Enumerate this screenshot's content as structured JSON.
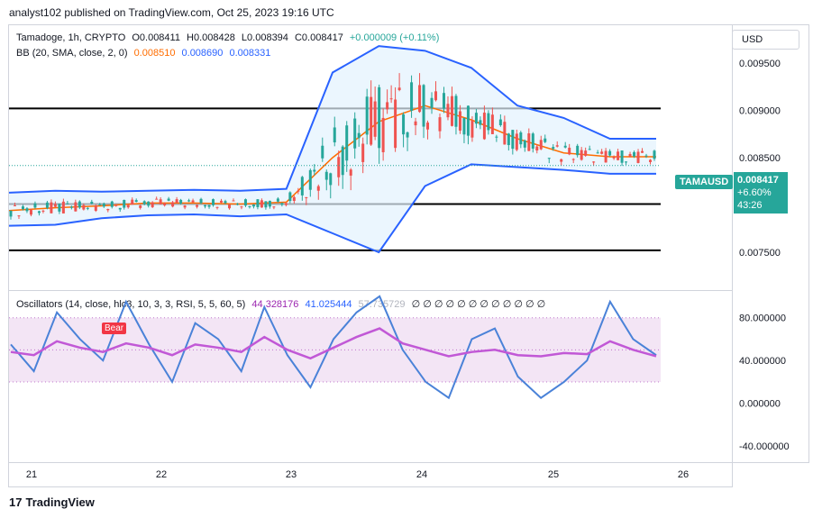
{
  "header": {
    "published": "analyst102 published on TradingView.com, Oct 25, 2023 19:16 UTC"
  },
  "legend": {
    "symbol": "Tamadoge, 1h, CRYPTO",
    "open": "O0.008411",
    "high": "H0.008428",
    "low": "L0.008394",
    "close": "C0.008417",
    "change": "+0.000009 (+0.11%)",
    "bb_label": "BB (20, SMA, close, 2, 0)",
    "bb_basis": "0.008510",
    "bb_upper": "0.008690",
    "bb_lower": "0.008331",
    "osc_label": "Oscillators (14, close, hlc3, 10, 3, 3, RSI, 5, 5, 60, 5)",
    "osc_v1": "44.328176",
    "osc_v2": "41.025444",
    "osc_v3": "57.735729",
    "osc_zeros": "∅ ∅ ∅ ∅ ∅ ∅ ∅ ∅ ∅ ∅ ∅ ∅"
  },
  "currency": "USD",
  "price_tag": {
    "symbol": "TAMAUSD",
    "price": "0.008417",
    "change": "+6.60%",
    "countdown": "43:26"
  },
  "bear_label": "Bear",
  "branding": "TradingView",
  "colors": {
    "up": "#26a69a",
    "down": "#ef5350",
    "bb_band": "#2962ff",
    "bb_basis": "#ff6d00",
    "bb_fill": "#e3f2fd",
    "osc_main": "#4a82d8",
    "osc_signal": "#c158d6",
    "osc_band": "#f3e5f5"
  },
  "chart_data": [
    {
      "type": "candlestick",
      "title": "Tamadoge, 1h, CRYPTO",
      "x_ticks": [
        "21",
        "22",
        "23",
        "24",
        "25",
        "26"
      ],
      "y_ticks": [
        "0.009500",
        "0.009000",
        "0.008500",
        "0.008000",
        "0.007500"
      ],
      "ylim": [
        0.0071,
        0.0099
      ],
      "horizontal_levels": [
        0.00902,
        0.00801,
        0.00752
      ],
      "series": [
        {
          "name": "BB upper",
          "values_approx": [
            0.00813,
            0.00815,
            0.00814,
            0.00815,
            0.00816,
            0.00815,
            0.00817,
            0.0094,
            0.00968,
            0.00963,
            0.00945,
            0.00905,
            0.00892,
            0.0087,
            0.0087
          ]
        },
        {
          "name": "BB basis",
          "values_approx": [
            0.00794,
            0.00797,
            0.00799,
            0.00802,
            0.00802,
            0.00801,
            0.00803,
            0.0085,
            0.00888,
            0.00905,
            0.0089,
            0.0087,
            0.00855,
            0.00851,
            0.00851
          ]
        },
        {
          "name": "BB lower",
          "values_approx": [
            0.00778,
            0.00779,
            0.00786,
            0.00789,
            0.0079,
            0.00788,
            0.0079,
            0.0077,
            0.0075,
            0.0082,
            0.00843,
            0.0084,
            0.00837,
            0.00833,
            0.00833
          ]
        }
      ],
      "last_close": 0.008417
    },
    {
      "type": "line",
      "title": "Oscillators (14, close, hlc3, 10, 3, 3, RSI, 5, 5, 60, 5)",
      "y_ticks": [
        "80.000000",
        "40.000000",
        "0.000000",
        "-40.000000"
      ],
      "ylim": [
        -55,
        105
      ],
      "band": [
        20,
        80
      ],
      "series": [
        {
          "name": "",
          "values": [
            55,
            30,
            85,
            60,
            40,
            95,
            55,
            20,
            75,
            60,
            30,
            90,
            45,
            15,
            60,
            85,
            100,
            50,
            20,
            5,
            60,
            70,
            25,
            5,
            20,
            40,
            95,
            60,
            45
          ]
        },
        {
          "name": "",
          "values": [
            48,
            45,
            58,
            52,
            48,
            56,
            52,
            45,
            55,
            52,
            48,
            62,
            50,
            42,
            52,
            62,
            70,
            56,
            50,
            44,
            48,
            50,
            45,
            44,
            47,
            46,
            58,
            50,
            44
          ]
        }
      ]
    }
  ]
}
